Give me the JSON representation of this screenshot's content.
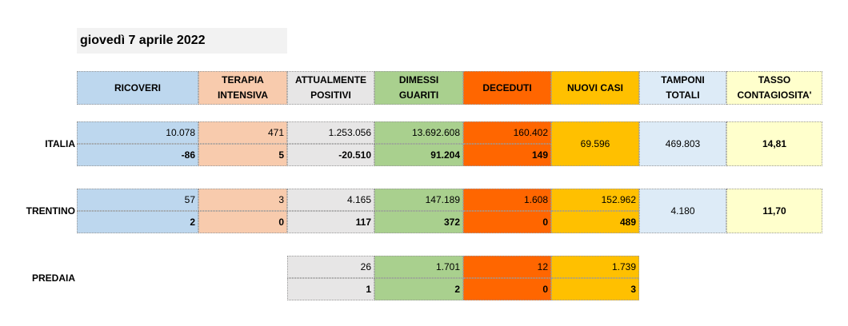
{
  "title": "giovedì 7 aprile 2022",
  "headers": {
    "ricoveri": "RICOVERI",
    "terapia": "TERAPIA\nINTENSIVA",
    "attualmente": "ATTUALMENTE\nPOSITIVI",
    "dimessi": "DIMESSI\nGUARITI",
    "deceduti": "DECEDUTI",
    "nuovi": "NUOVI CASI",
    "tamponi": "TAMPONI\nTOTALI",
    "tasso": "TASSO\nCONTAGIOSITA'"
  },
  "italia": {
    "label": "ITALIA",
    "totals": {
      "ricoveri": "10.078",
      "terapia": "471",
      "attualmente": "1.253.056",
      "dimessi": "13.692.608",
      "deceduti": "160.402"
    },
    "deltas": {
      "ricoveri": "-86",
      "terapia": "5",
      "attualmente": "-20.510",
      "dimessi": "91.204",
      "deceduti": "149"
    },
    "nuovi": "69.596",
    "tamponi": "469.803",
    "tasso": "14,81"
  },
  "trentino": {
    "label": "TRENTINO",
    "totals": {
      "ricoveri": "57",
      "terapia": "3",
      "attualmente": "4.165",
      "dimessi": "147.189",
      "deceduti": "1.608",
      "nuovi": "152.962"
    },
    "deltas": {
      "ricoveri": "2",
      "terapia": "0",
      "attualmente": "117",
      "dimessi": "372",
      "deceduti": "0",
      "nuovi": "489"
    },
    "tamponi": "4.180",
    "tasso": "11,70"
  },
  "predaia": {
    "label": "PREDAIA",
    "totals": {
      "attualmente": "26",
      "dimessi": "1.701",
      "deceduti": "12",
      "nuovi": "1.739"
    },
    "deltas": {
      "attualmente": "1",
      "dimessi": "2",
      "deceduti": "0",
      "nuovi": "3"
    }
  },
  "colors": {
    "ricoveri": "#bdd7ee",
    "terapia": "#f8cbad",
    "attualmente": "#e7e6e6",
    "dimessi": "#a9d08e",
    "deceduti": "#ff6600",
    "nuovi": "#ffc000",
    "tamponi": "#ddebf7",
    "tasso": "#ffffcc"
  }
}
